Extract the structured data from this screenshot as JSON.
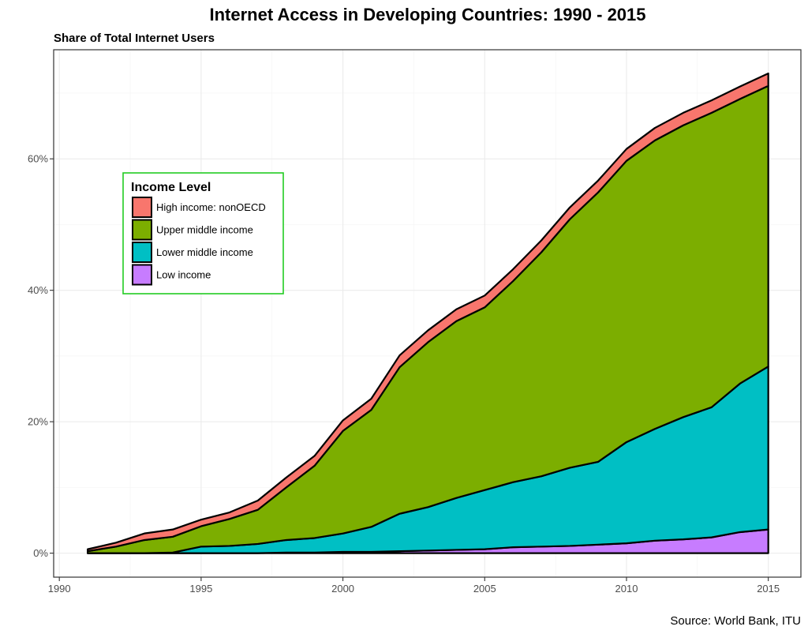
{
  "chart_data": {
    "type": "area",
    "stacked": true,
    "title": "Internet Access in Developing Countries: 1990 - 2015",
    "subtitle": "Share of Total Internet Users",
    "caption": "Source: World Bank, ITU",
    "xlabel": "",
    "ylabel": "",
    "x": [
      1991,
      1992,
      1993,
      1994,
      1995,
      1996,
      1997,
      1998,
      1999,
      2000,
      2001,
      2002,
      2003,
      2004,
      2005,
      2006,
      2007,
      2008,
      2009,
      2010,
      2011,
      2012,
      2013,
      2014,
      2015
    ],
    "xlim": [
      1990,
      2015
    ],
    "ylim": [
      0,
      75
    ],
    "x_ticks": [
      1990,
      1995,
      2000,
      2005,
      2010,
      2015
    ],
    "y_ticks": [
      0,
      20,
      40,
      60
    ],
    "y_tick_labels": [
      "0%",
      "20%",
      "40%",
      "60%"
    ],
    "grid": true,
    "legend": {
      "title": "Income Level",
      "position": "top-left inside",
      "border_color": "#22cc22"
    },
    "series": [
      {
        "name": "High income: nonOECD",
        "color": "#f8766d",
        "values": [
          0.3,
          0.6,
          1.0,
          1.1,
          1.0,
          1.0,
          1.4,
          1.5,
          1.5,
          1.6,
          1.7,
          1.8,
          1.8,
          1.8,
          1.8,
          1.8,
          1.8,
          1.8,
          1.8,
          1.8,
          1.9,
          1.9,
          1.9,
          1.9,
          1.9
        ]
      },
      {
        "name": "Upper middle income",
        "color": "#7cae00",
        "values": [
          0.3,
          1.0,
          2.0,
          2.4,
          3.1,
          4.1,
          5.2,
          8.0,
          11.0,
          15.6,
          17.8,
          22.3,
          25.1,
          26.9,
          27.8,
          30.6,
          34.1,
          37.8,
          41.0,
          42.8,
          43.9,
          44.4,
          44.8,
          43.3,
          42.7
        ]
      },
      {
        "name": "Lower middle income",
        "color": "#00bfc4",
        "values": [
          0.0,
          0.0,
          0.0,
          0.1,
          1.0,
          1.1,
          1.4,
          1.9,
          2.2,
          2.8,
          3.8,
          5.7,
          6.6,
          7.9,
          9.0,
          9.9,
          10.7,
          11.9,
          12.6,
          15.4,
          17.0,
          18.6,
          19.8,
          22.6,
          24.8
        ]
      },
      {
        "name": "Low income",
        "color": "#c77cff",
        "values": [
          0.0,
          0.0,
          0.0,
          0.0,
          0.0,
          0.0,
          0.0,
          0.1,
          0.1,
          0.2,
          0.2,
          0.3,
          0.4,
          0.5,
          0.6,
          0.9,
          1.0,
          1.1,
          1.3,
          1.5,
          1.9,
          2.1,
          2.4,
          3.2,
          3.6
        ]
      }
    ]
  }
}
